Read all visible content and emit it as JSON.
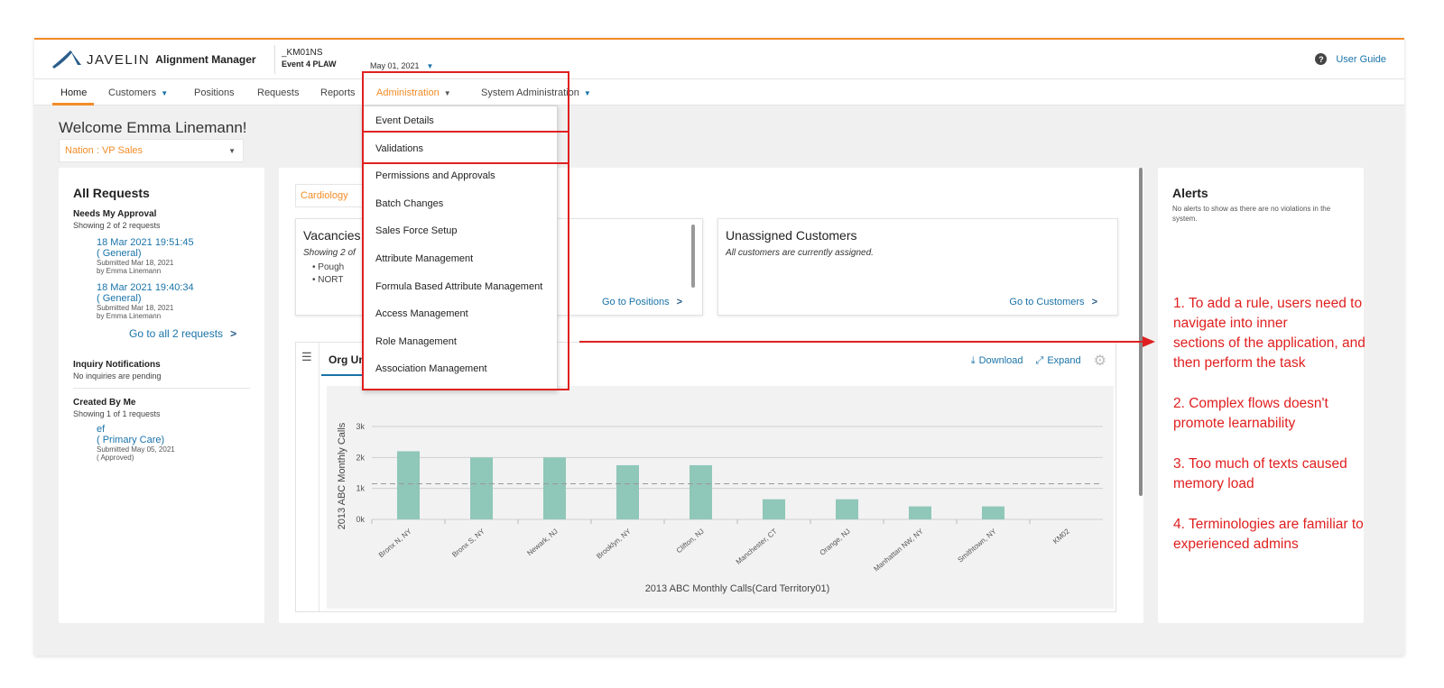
{
  "header": {
    "logo_word": "JAVELIN",
    "logo_product": "Alignment Manager",
    "event_code": "_KM01NS",
    "event_name": "Event 4 PLAW",
    "date": "May 01, 2021",
    "user_guide": "User Guide"
  },
  "nav": {
    "home": "Home",
    "customers": "Customers",
    "positions": "Positions",
    "requests": "Requests",
    "reports": "Reports",
    "administration": "Administration",
    "system_administration": "System Administration"
  },
  "admin_menu": {
    "items": [
      "Event Details",
      "Validations",
      "Permissions and Approvals",
      "Batch Changes",
      "Sales Force Setup",
      "Attribute Management",
      "Formula Based Attribute Management",
      "Access Management",
      "Role Management",
      "Association Management"
    ]
  },
  "welcome": "Welcome Emma Linemann!",
  "nation_select": "Nation : VP Sales",
  "all_requests": {
    "title": "All Requests",
    "needs_approval": "Needs My Approval",
    "showing": "Showing 2 of 2 requests",
    "requests": [
      {
        "date": "18 Mar 2021 19:51:45",
        "type": "( General)",
        "submitted": "Submitted Mar 18, 2021",
        "by": "by Emma Linemann"
      },
      {
        "date": "18 Mar 2021 19:40:34",
        "type": "( General)",
        "submitted": "Submitted Mar 18, 2021",
        "by": "by Emma Linemann"
      }
    ],
    "go_all": "Go to all 2 requests",
    "inquiry_title": "Inquiry Notifications",
    "inquiry_text": "No inquiries are pending",
    "created_title": "Created By Me",
    "created_showing": "Showing 1 of 1 requests",
    "created": {
      "name": "ef",
      "type": "( Primary Care)",
      "submitted": "Submitted May 05, 2021",
      "status": "( Approved)"
    }
  },
  "main": {
    "tab": "Cardiology",
    "vacancies": {
      "title": "Vacancies",
      "sub": "Showing 2 of",
      "items": [
        "Pough",
        "NORT"
      ],
      "go": "Go to Positions"
    },
    "unassigned": {
      "title": "Unassigned Customers",
      "sub": "All customers are currently assigned.",
      "go": "Go to Customers"
    },
    "org": {
      "title": "Org Un",
      "download": "Download",
      "expand": "Expand"
    }
  },
  "alerts": {
    "title": "Alerts",
    "text": "No alerts to show as there are no violations in the system."
  },
  "chart_data": {
    "type": "bar",
    "categories": [
      "Bronx N, NY",
      "Bronx S, NY",
      "Newark, NJ",
      "Brooklyn, NY",
      "Clifton, NJ",
      "Manchester, CT",
      "Orange, NJ",
      "Manhattan NW, NY",
      "Smithtown, NY",
      "KM02"
    ],
    "values": [
      2200,
      2000,
      2000,
      1750,
      1750,
      650,
      650,
      420,
      420,
      0
    ],
    "reference_line": 1150,
    "ylim": [
      0,
      3000
    ],
    "yticks": [
      "0k",
      "1k",
      "2k",
      "3k"
    ],
    "ytick_values": [
      0,
      1000,
      2000,
      3000
    ],
    "xlabel": "2013 ABC Monthly Calls(Card Territory01)",
    "ylabel": "2013 ABC Monthly Calls",
    "bar_color": "#8fc7b8"
  },
  "annotations": [
    "1. To add a rule, users need to navigate into inner\nsections of the application, and then perform the task",
    "2. Complex flows doesn't promote learnability",
    "3. Too much of texts caused memory load",
    "4. Terminologies are familiar to experienced admins"
  ]
}
